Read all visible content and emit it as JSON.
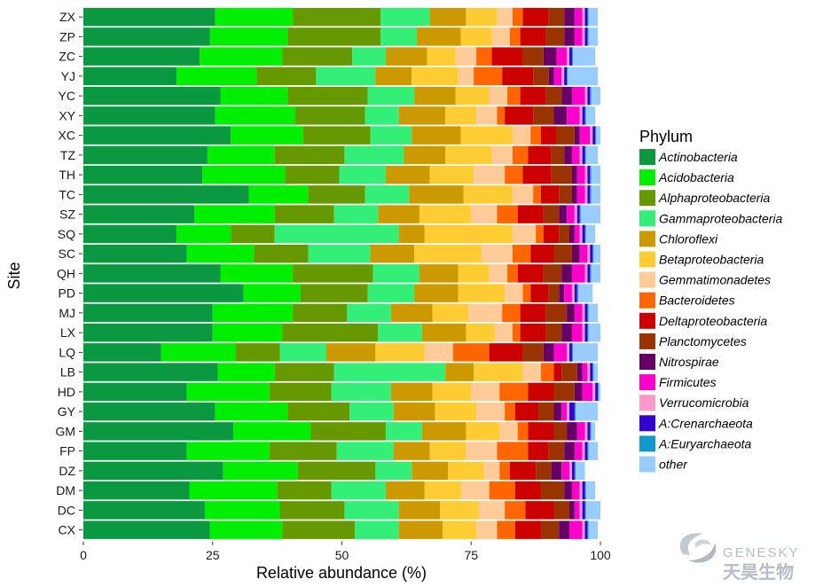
{
  "chart_data": {
    "type": "bar",
    "orientation": "horizontal",
    "stacked": true,
    "xlabel": "Relative abundance (%)",
    "ylabel": "Site",
    "xlim": [
      0,
      100
    ],
    "xticks": [
      0,
      25,
      50,
      75,
      100
    ],
    "legend_title": "Phylum",
    "legend_position": "right",
    "grid": false,
    "categories": [
      "ZX",
      "ZP",
      "ZC",
      "YJ",
      "YC",
      "XY",
      "XC",
      "TZ",
      "TH",
      "TC",
      "SZ",
      "SQ",
      "SC",
      "QH",
      "PD",
      "MJ",
      "LX",
      "LQ",
      "LB",
      "HD",
      "GY",
      "GM",
      "FP",
      "DZ",
      "DM",
      "DC",
      "CX"
    ],
    "series": [
      {
        "name": "Actinobacteria",
        "color": "#0a9940",
        "values": [
          25.5,
          24.5,
          22.5,
          18,
          26.5,
          25.5,
          28.5,
          24,
          23,
          32,
          21.5,
          18,
          20,
          26.5,
          31,
          25,
          25,
          15,
          26,
          20,
          25.5,
          29,
          20,
          27,
          20.5,
          23.5,
          24.5
        ]
      },
      {
        "name": "Acidobacteria",
        "color": "#00ee00",
        "values": [
          15,
          15,
          16,
          15.5,
          13,
          15.5,
          14,
          13,
          16,
          11.5,
          15.5,
          10.5,
          13,
          14,
          11,
          15.5,
          13.5,
          14.5,
          11,
          16,
          14,
          15,
          16,
          14.5,
          17,
          14.5,
          14
        ]
      },
      {
        "name": "Alphaproteobacteria",
        "color": "#669900",
        "values": [
          17,
          18,
          13.5,
          11.5,
          15.5,
          13.5,
          13,
          13.5,
          10.5,
          11,
          11.5,
          8.5,
          10.5,
          15.5,
          13,
          10.5,
          18.5,
          8.5,
          11.5,
          12,
          12,
          14.5,
          13,
          15,
          10.5,
          12.5,
          14
        ]
      },
      {
        "name": "Gammaproteobacteria",
        "color": "#33ee77",
        "values": [
          9.5,
          7,
          6.5,
          11.5,
          9,
          6.5,
          8,
          11.5,
          9,
          8.5,
          8.5,
          24,
          12,
          9,
          9,
          8.5,
          8.5,
          9,
          21.5,
          11.5,
          8.5,
          7,
          11,
          7,
          10.5,
          10.5,
          8.5
        ]
      },
      {
        "name": "Chloroflexi",
        "color": "#cc9900",
        "values": [
          7,
          8.5,
          8,
          7,
          8,
          9,
          9.5,
          8,
          8.5,
          10.5,
          8,
          5,
          8.5,
          7.5,
          8.5,
          8,
          8.5,
          9.5,
          5.5,
          8,
          8,
          8.5,
          7,
          7,
          7.5,
          8,
          8.5
        ]
      },
      {
        "name": "Betaproteobacteria",
        "color": "#ffcc33",
        "values": [
          6,
          6,
          5.5,
          9,
          6.5,
          6,
          10,
          9,
          8.5,
          9.5,
          10,
          17,
          13,
          6,
          9,
          7,
          5.5,
          9.5,
          9.5,
          7.5,
          8,
          6.5,
          7,
          7,
          7,
          7.5,
          6.5
        ]
      },
      {
        "name": "Gemmatimonadetes",
        "color": "#ffcc99",
        "values": [
          3,
          3.5,
          4,
          3,
          3.5,
          4,
          3.5,
          4,
          6,
          4,
          5,
          4.5,
          6,
          3.5,
          3.5,
          6.5,
          3.5,
          5.5,
          3.5,
          5.5,
          5.5,
          3.5,
          6,
          3,
          5.5,
          5,
          4
        ]
      },
      {
        "name": "Bacteroidetes",
        "color": "#ff6600",
        "values": [
          2,
          2,
          3,
          5.5,
          2.5,
          1.5,
          2,
          3,
          3.5,
          1.5,
          4,
          1.5,
          3.5,
          2,
          1.5,
          3.5,
          1.5,
          7,
          2.5,
          5.5,
          2,
          2,
          6,
          2,
          5,
          4,
          3.5
        ]
      },
      {
        "name": "Deltaproteobacteria",
        "color": "#cc0000",
        "values": [
          5,
          5,
          6,
          6,
          5,
          5.5,
          3,
          4.5,
          5.5,
          3.5,
          5,
          3,
          4.5,
          5,
          3.5,
          5,
          5,
          6.5,
          1.5,
          5,
          4.5,
          5,
          4,
          5,
          5,
          5.5,
          5
        ]
      },
      {
        "name": "Planctomycetes",
        "color": "#993300",
        "values": [
          3,
          3.5,
          4,
          3,
          3,
          4,
          3.5,
          2.5,
          4,
          2.5,
          3,
          2,
          3.5,
          3.5,
          2,
          4,
          3,
          4,
          3,
          4,
          3,
          2.5,
          3,
          3,
          4.5,
          3,
          3.5
        ]
      },
      {
        "name": "Nitrospirae",
        "color": "#660066",
        "values": [
          2,
          2,
          2.5,
          1,
          2,
          2.5,
          1,
          1.5,
          1,
          1,
          1.5,
          1,
          1.5,
          2,
          1,
          1.5,
          2,
          2,
          1,
          1.5,
          1.5,
          2,
          2,
          2,
          1.5,
          1,
          2
        ]
      },
      {
        "name": "Firmicutes",
        "color": "#ff00cc",
        "values": [
          1.5,
          1.5,
          2,
          1.5,
          2.5,
          2.5,
          2,
          1.5,
          1.5,
          1.5,
          1.5,
          1,
          1.5,
          2.5,
          1.5,
          1.5,
          2,
          2.5,
          1,
          2,
          1,
          1.5,
          1.5,
          1.5,
          1.5,
          1,
          2.5
        ]
      },
      {
        "name": "Verrucomicrobia",
        "color": "#ff99cc",
        "values": [
          0.5,
          0.5,
          0.5,
          0.5,
          0.5,
          0.5,
          0.5,
          0.5,
          0.5,
          0.5,
          0.5,
          0.5,
          0.5,
          0.5,
          0.5,
          0.5,
          0.5,
          0.5,
          0.5,
          0.5,
          0.5,
          0.5,
          0.5,
          0.5,
          0.5,
          0.5,
          0.5
        ]
      },
      {
        "name": "A:Crenarchaeota",
        "color": "#3300cc",
        "values": [
          0.5,
          0.5,
          0.5,
          0.5,
          0.5,
          0.5,
          0.5,
          0.5,
          0.5,
          0.5,
          0.5,
          0.5,
          0.5,
          0.5,
          0.5,
          0.5,
          0.5,
          0.5,
          0.5,
          0.5,
          1,
          0.5,
          0.5,
          0.5,
          0.5,
          0.5,
          0.5
        ]
      },
      {
        "name": "A:Euryarchaeota",
        "color": "#1199cc",
        "values": [
          0.2,
          0.2,
          0.2,
          0.2,
          0.2,
          0.2,
          0.2,
          0.2,
          0.2,
          0.2,
          0.2,
          0.2,
          0.2,
          0.2,
          0.2,
          0.2,
          0.2,
          0.2,
          0.2,
          0.2,
          0.2,
          0.2,
          0.2,
          0.2,
          0.2,
          0.2,
          0.2
        ]
      },
      {
        "name": "other",
        "color": "#99ccff",
        "values": [
          1.8,
          1.8,
          4.3,
          5.8,
          1.8,
          1.8,
          1.3,
          2.3,
          1.8,
          1.8,
          3.8,
          1.8,
          1.3,
          1.8,
          2.8,
          1.8,
          2.3,
          4.8,
          0.8,
          0.3,
          4.3,
          0.8,
          1.8,
          1.8,
          1.8,
          2.8,
          1.8
        ]
      }
    ]
  },
  "logo": {
    "text_en": "GENESKY",
    "text_cn": "天昊生物"
  }
}
